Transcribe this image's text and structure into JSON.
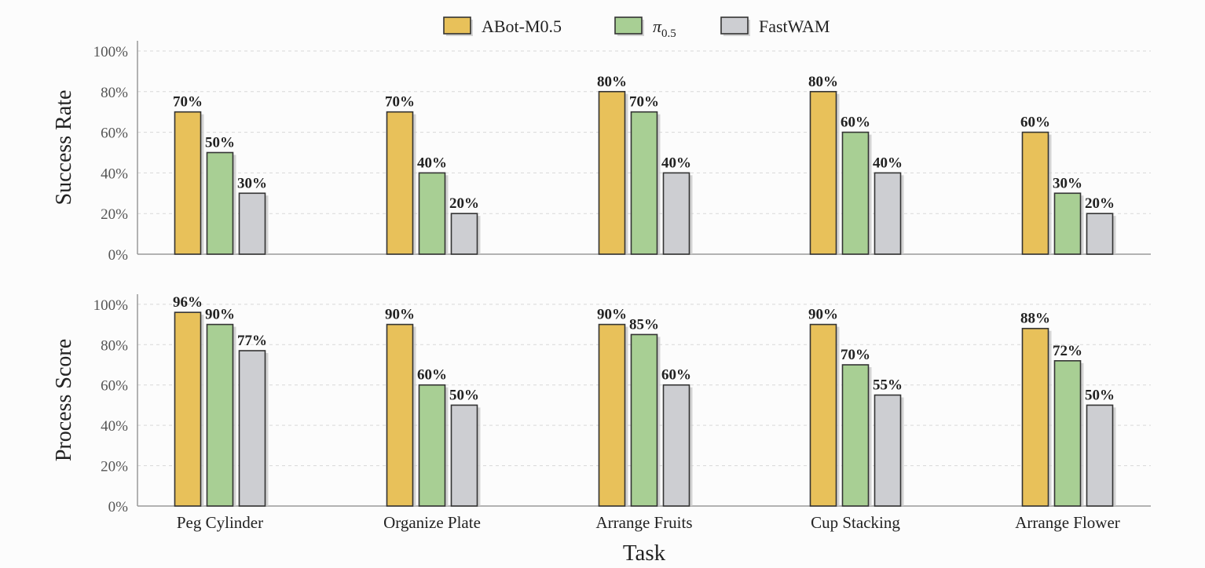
{
  "chart_data": [
    {
      "type": "bar",
      "categories": [
        "Peg Cylinder",
        "Organize Plate",
        "Arrange Fruits",
        "Cup Stacking",
        "Arrange Flower"
      ],
      "series": [
        {
          "name": "ABot-M0.5",
          "color": "#e8c15a",
          "values": [
            70,
            70,
            80,
            80,
            60
          ],
          "labels": [
            "70%",
            "70%",
            "80%",
            "80%",
            "60%"
          ]
        },
        {
          "name": "π0.5",
          "name_base": "π",
          "name_sub": "0.5",
          "color": "#a8cf94",
          "values": [
            50,
            40,
            70,
            60,
            30
          ],
          "labels": [
            "50%",
            "40%",
            "70%",
            "60%",
            "30%"
          ]
        },
        {
          "name": "FastWAM",
          "color": "#cdced2",
          "values": [
            30,
            20,
            40,
            40,
            20
          ],
          "labels": [
            "30%",
            "20%",
            "40%",
            "40%",
            "20%"
          ]
        }
      ],
      "ylabel": "Success Rate",
      "xlabel": "",
      "ylim": [
        0,
        105
      ],
      "yticks": [
        "0%",
        "20%",
        "40%",
        "60%",
        "80%",
        "100%"
      ],
      "ytick_values": [
        0,
        20,
        40,
        60,
        80,
        100
      ],
      "grid": true
    },
    {
      "type": "bar",
      "categories": [
        "Peg Cylinder",
        "Organize Plate",
        "Arrange Fruits",
        "Cup Stacking",
        "Arrange Flower"
      ],
      "series": [
        {
          "name": "ABot-M0.5",
          "color": "#e8c15a",
          "values": [
            96,
            90,
            90,
            90,
            88
          ],
          "labels": [
            "96%",
            "90%",
            "90%",
            "90%",
            "88%"
          ]
        },
        {
          "name": "π0.5",
          "color": "#a8cf94",
          "values": [
            90,
            60,
            85,
            70,
            72
          ],
          "labels": [
            "90%",
            "60%",
            "85%",
            "70%",
            "72%"
          ]
        },
        {
          "name": "FastWAM",
          "color": "#cdced2",
          "values": [
            77,
            50,
            60,
            55,
            50
          ],
          "labels": [
            "77%",
            "50%",
            "60%",
            "55%",
            "50%"
          ]
        }
      ],
      "ylabel": "Process Score",
      "xlabel": "Task",
      "ylim": [
        0,
        105
      ],
      "yticks": [
        "0%",
        "20%",
        "40%",
        "60%",
        "80%",
        "100%"
      ],
      "ytick_values": [
        0,
        20,
        40,
        60,
        80,
        100
      ],
      "grid": true
    }
  ],
  "legend": {
    "position": "top-center",
    "items": [
      {
        "label": "ABot-M0.5",
        "color": "#e8c15a"
      },
      {
        "label_base": "π",
        "label_sub": "0.5",
        "color": "#a8cf94"
      },
      {
        "label": "FastWAM",
        "color": "#cdced2"
      }
    ]
  }
}
